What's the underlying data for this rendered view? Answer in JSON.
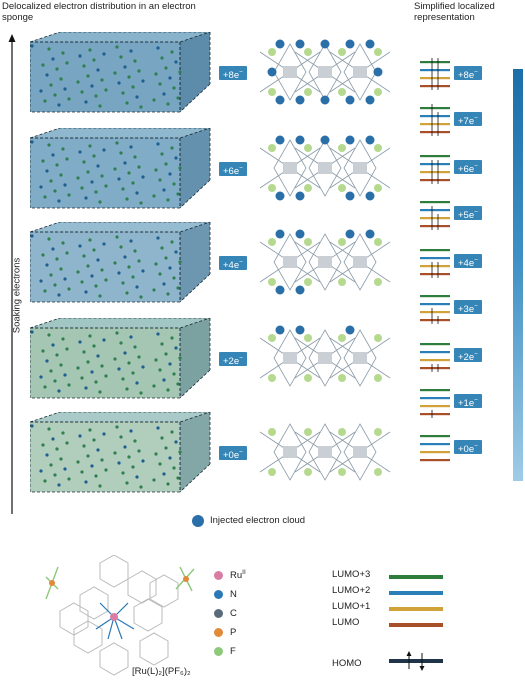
{
  "headers": {
    "left": "Delocalized electron distribution in an electron sponge",
    "right": "Simplified localized representation"
  },
  "axis_label": "Soaking electrons",
  "states": [
    {
      "label": "+8e",
      "sup": "−"
    },
    {
      "label": "+6e",
      "sup": "−"
    },
    {
      "label": "+4e",
      "sup": "−"
    },
    {
      "label": "+2e",
      "sup": "−"
    },
    {
      "label": "+0e",
      "sup": "−"
    }
  ],
  "right_tags": [
    {
      "label": "+8e",
      "sup": "−"
    },
    {
      "label": "+7e",
      "sup": "−"
    },
    {
      "label": "+6e",
      "sup": "−"
    },
    {
      "label": "+5e",
      "sup": "−"
    },
    {
      "label": "+4e",
      "sup": "−"
    },
    {
      "label": "+3e",
      "sup": "−"
    },
    {
      "label": "+2e",
      "sup": "−"
    },
    {
      "label": "+1e",
      "sup": "−"
    },
    {
      "label": "+0e",
      "sup": "−"
    }
  ],
  "legend_cloud": "Injected electron cloud",
  "atom_legend": [
    {
      "label": "Ru",
      "sup": "II",
      "color": "#d97da5"
    },
    {
      "label": "N",
      "sup": "",
      "color": "#2a78b8"
    },
    {
      "label": "C",
      "sup": "",
      "color": "#5a6a7a"
    },
    {
      "label": "P",
      "sup": "",
      "color": "#e08a3a"
    },
    {
      "label": "F",
      "sup": "",
      "color": "#8cc97a"
    }
  ],
  "formula": "[Ru(L)₂](PF₆)₂",
  "orbitals": [
    {
      "label": "LUMO+3",
      "color": "#2e7d3c"
    },
    {
      "label": "LUMO+2",
      "color": "#2a7fb8"
    },
    {
      "label": "LUMO+1",
      "color": "#d2a23a"
    },
    {
      "label": "LUMO",
      "color": "#a8502a"
    }
  ],
  "homo_label": "HOMO",
  "colors": {
    "accent": "#3585b6",
    "electron": "#2a6fa8",
    "crystal_green": "#2f7f4f",
    "crystal_blue": "#2a6f9e"
  }
}
